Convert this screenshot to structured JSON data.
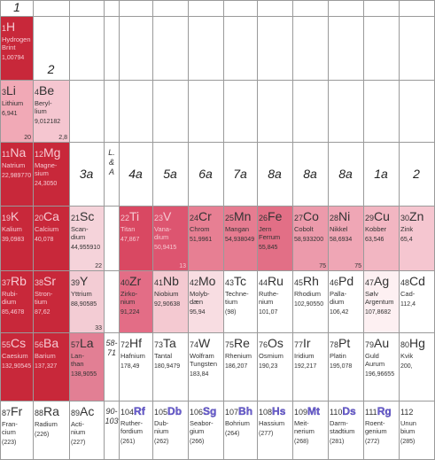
{
  "top_labels": [
    "1",
    null,
    null,
    null,
    null,
    null,
    null,
    null,
    null,
    null,
    null,
    null,
    null
  ],
  "row_1_group_labels": [
    null,
    "2",
    null,
    null,
    null,
    null,
    null,
    null,
    null,
    null,
    null,
    null,
    null
  ],
  "row_3_group_labels": [
    null,
    null,
    "3a",
    null,
    "4a",
    "5a",
    "6a",
    "7a",
    "8a",
    "8a",
    "8a",
    "1a",
    "2"
  ],
  "rows": [
    [
      {
        "number": 1,
        "symbol": "H",
        "name": [
          "Hydrogen",
          "Brint"
        ],
        "mass": "1,00794",
        "color": "#c8283a"
      },
      null,
      null,
      null,
      null,
      null,
      null,
      null,
      null,
      null,
      null,
      null,
      null
    ],
    [
      {
        "number": 3,
        "symbol": "Li",
        "name": [
          "Lithium"
        ],
        "mass": "6,941",
        "corner": "20",
        "color": "#f1a9b6"
      },
      {
        "number": 4,
        "symbol": "Be",
        "name": [
          "Beryl-",
          "lium"
        ],
        "mass": "9,012182",
        "corner": "2,8",
        "color": "#f5c6d0"
      },
      null,
      null,
      null,
      null,
      null,
      null,
      null,
      null,
      null,
      null,
      null
    ],
    [
      {
        "number": 11,
        "symbol": "Na",
        "name": [
          "Natrium"
        ],
        "mass": "22,989770",
        "color": "#c8283a"
      },
      {
        "number": 12,
        "symbol": "Mg",
        "name": [
          "Magne-",
          "sium"
        ],
        "mass": "24,3050",
        "color": "#c8283a"
      },
      null,
      {
        "note": [
          "L.",
          "&",
          "A"
        ]
      },
      null,
      null,
      null,
      null,
      null,
      null,
      null,
      null,
      null
    ],
    [
      {
        "number": 19,
        "symbol": "K",
        "name": [
          "Kalium"
        ],
        "mass": "39,0983",
        "color": "#c8283a"
      },
      {
        "number": 20,
        "symbol": "Ca",
        "name": [
          "Calcium"
        ],
        "mass": "40,078",
        "color": "#c8283a"
      },
      {
        "number": 21,
        "symbol": "Sc",
        "name": [
          "Scan-",
          "dium"
        ],
        "mass": "44,955910",
        "corner": "22",
        "color": "#f5d3da"
      },
      null,
      {
        "number": 22,
        "symbol": "Ti",
        "name": [
          "Titan"
        ],
        "mass": "47,867",
        "color": "#d94862"
      },
      {
        "number": 23,
        "symbol": "V",
        "name": [
          "Vana-",
          "dium"
        ],
        "mass": "50,9415",
        "corner": "13",
        "color": "#dd5570"
      },
      {
        "number": 24,
        "symbol": "Cr",
        "name": [
          "Chrom"
        ],
        "mass": "51,9961",
        "color": "#e77f93"
      },
      {
        "number": 25,
        "symbol": "Mn",
        "name": [
          "Mangan"
        ],
        "mass": "54,938049",
        "color": "#e67c91"
      },
      {
        "number": 26,
        "symbol": "Fe",
        "name": [
          "Jern",
          "Ferrum"
        ],
        "mass": "55,845",
        "color": "#e26f86"
      },
      {
        "number": 27,
        "symbol": "Co",
        "name": [
          "Cobolt"
        ],
        "mass": "58,933200",
        "corner": "75",
        "color": "#ec9aab"
      },
      {
        "number": 28,
        "symbol": "Ni",
        "name": [
          "Nikkel"
        ],
        "mass": "58,6934",
        "corner": "75",
        "color": "#efa6b5"
      },
      {
        "number": 29,
        "symbol": "Cu",
        "name": [
          "Kobber"
        ],
        "mass": "63,546",
        "color": "#f2b6c2"
      },
      {
        "number": 30,
        "symbol": "Zn",
        "name": [
          "Zink"
        ],
        "mass": "65,4",
        "color": "#f5c6d0"
      }
    ],
    [
      {
        "number": 37,
        "symbol": "Rb",
        "name": [
          "Rubi-",
          "dium"
        ],
        "mass": "85,4678",
        "color": "#c8283a"
      },
      {
        "number": 38,
        "symbol": "Sr",
        "name": [
          "Stron-",
          "tium"
        ],
        "mass": "87,62",
        "color": "#c8283a"
      },
      {
        "number": 39,
        "symbol": "Y",
        "name": [
          "Yttrium"
        ],
        "mass": "88,90585",
        "corner": "33",
        "color": "#f3ccd4"
      },
      null,
      {
        "number": 40,
        "symbol": "Zr",
        "name": [
          "Zirko-",
          "nium"
        ],
        "mass": "91,224",
        "color": "#e36d86"
      },
      {
        "number": 41,
        "symbol": "Nb",
        "name": [
          "Niobium"
        ],
        "mass": "92,90638",
        "color": "#f4c9d1"
      },
      {
        "number": 42,
        "symbol": "Mo",
        "name": [
          "Molyb-",
          "dæn"
        ],
        "mass": "95,94",
        "color": "#f8dde2"
      },
      {
        "number": 43,
        "symbol": "Tc",
        "name": [
          "Techne-",
          "tium"
        ],
        "mass": "(98)"
      },
      {
        "number": 44,
        "symbol": "Ru",
        "name": [
          "Ruthe-",
          "nium"
        ],
        "mass": "101,07"
      },
      {
        "number": 45,
        "symbol": "Rh",
        "name": [
          "Rhodium"
        ],
        "mass": "102,90550"
      },
      {
        "number": 46,
        "symbol": "Pd",
        "name": [
          "Palla-",
          "dium"
        ],
        "mass": "106,42"
      },
      {
        "number": 47,
        "symbol": "Ag",
        "name": [
          "Sølv",
          "Argentum"
        ],
        "mass": "107,8682",
        "color": "#fdf0f2"
      },
      {
        "number": 48,
        "symbol": "Cd",
        "name": [
          "Cad-"
        ],
        "mass": "112,4"
      }
    ],
    [
      {
        "number": 55,
        "symbol": "Cs",
        "name": [
          "Caesium"
        ],
        "mass": "132,90545",
        "color": "#c8283a"
      },
      {
        "number": 56,
        "symbol": "Ba",
        "name": [
          "Barium"
        ],
        "mass": "137,327",
        "color": "#c8283a"
      },
      {
        "number": 57,
        "symbol": "La",
        "name": [
          "Lan-",
          "than"
        ],
        "mass": "138,9055",
        "color": "#e27f94"
      },
      {
        "note": [
          "58-",
          "71"
        ]
      },
      {
        "number": 72,
        "symbol": "Hf",
        "name": [
          "Hafnium"
        ],
        "mass": "178,49"
      },
      {
        "number": 73,
        "symbol": "Ta",
        "name": [
          "Tantal"
        ],
        "mass": "180,9479"
      },
      {
        "number": 74,
        "symbol": "W",
        "name": [
          "Wolfram",
          "Tungsten"
        ],
        "mass": "183,84"
      },
      {
        "number": 75,
        "symbol": "Re",
        "name": [
          "Rhenium"
        ],
        "mass": "186,207"
      },
      {
        "number": 76,
        "symbol": "Os",
        "name": [
          "Osmium"
        ],
        "mass": "190,23"
      },
      {
        "number": 77,
        "symbol": "Ir",
        "name": [
          "Iridium"
        ],
        "mass": "192,217"
      },
      {
        "number": 78,
        "symbol": "Pt",
        "name": [
          "Platin"
        ],
        "mass": "195,078"
      },
      {
        "number": 79,
        "symbol": "Au",
        "name": [
          "Guld",
          "Aurum"
        ],
        "mass": "196,96655"
      },
      {
        "number": 80,
        "symbol": "Hg",
        "name": [
          "Kvik"
        ],
        "mass": "200,"
      }
    ],
    [
      {
        "number": 87,
        "symbol": "Fr",
        "name": [
          "Fran-",
          "cium"
        ],
        "mass": "(223)",
        "synthetic": true
      },
      {
        "number": 88,
        "symbol": "Ra",
        "name": [
          "Radium"
        ],
        "mass": "(226)"
      },
      {
        "number": 89,
        "symbol": "Ac",
        "name": [
          "Acti-",
          "nium"
        ],
        "mass": "(227)"
      },
      {
        "note": [
          "90-",
          "103"
        ]
      },
      {
        "number": 104,
        "symbol": "Rf",
        "name": [
          "Ruther-",
          "fordium"
        ],
        "mass": "(261)",
        "synthetic": true
      },
      {
        "number": 105,
        "symbol": "Db",
        "name": [
          "Dub-",
          "nium"
        ],
        "mass": "(262)",
        "synthetic": true
      },
      {
        "number": 106,
        "symbol": "Sg",
        "name": [
          "Seabor-",
          "gium"
        ],
        "mass": "(266)",
        "synthetic": true
      },
      {
        "number": 107,
        "symbol": "Bh",
        "name": [
          "Bohrium"
        ],
        "mass": "(264)",
        "synthetic": true
      },
      {
        "number": 108,
        "symbol": "Hs",
        "name": [
          "Hassium"
        ],
        "mass": "(277)",
        "synthetic": true
      },
      {
        "number": 109,
        "symbol": "Mt",
        "name": [
          "Meit-",
          "nerium"
        ],
        "mass": "(268)",
        "synthetic": true
      },
      {
        "number": 110,
        "symbol": "Ds",
        "name": [
          "Darm-",
          "stadtium"
        ],
        "mass": "(281)",
        "synthetic": true
      },
      {
        "number": 111,
        "symbol": "Rg",
        "name": [
          "Roent-",
          "genium"
        ],
        "mass": "(272)",
        "synthetic": true
      },
      {
        "number": 112,
        "name": [
          "Unun",
          "bium"
        ],
        "mass": "(285)"
      }
    ]
  ]
}
